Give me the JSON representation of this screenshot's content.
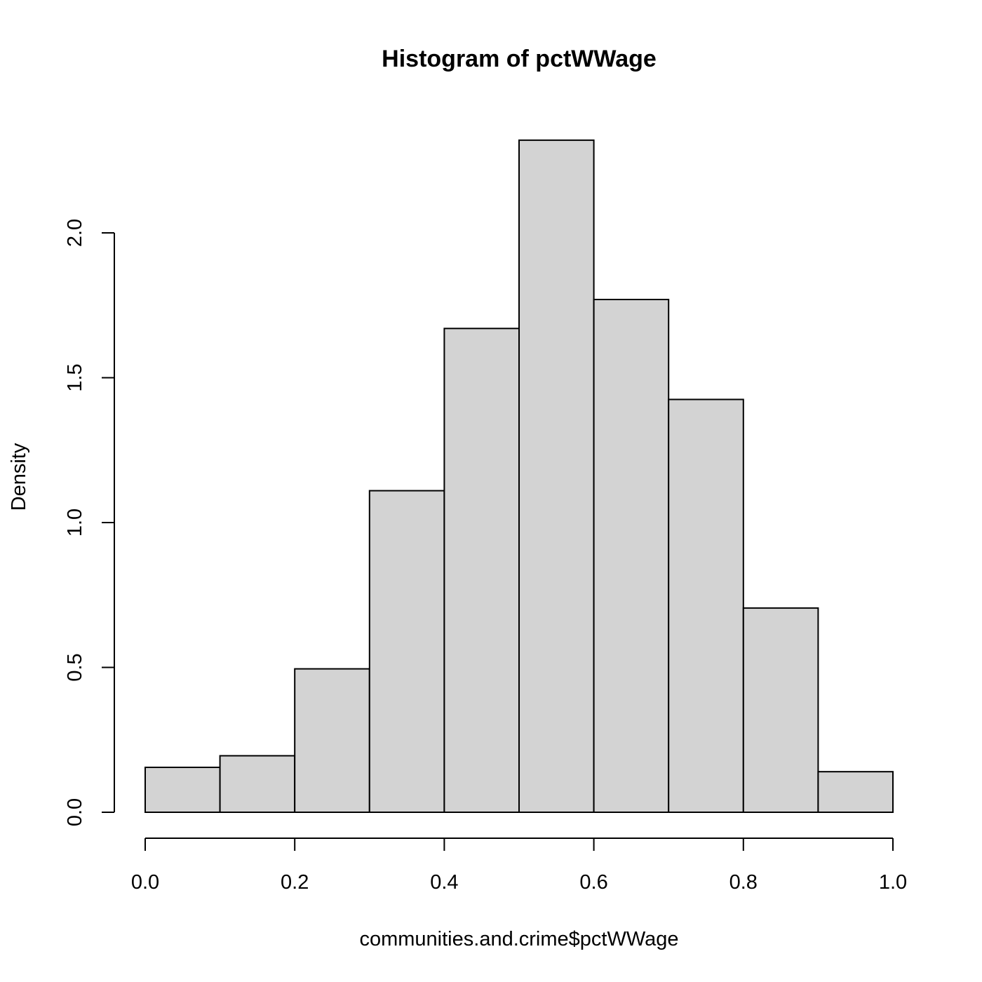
{
  "chart_data": {
    "type": "bar",
    "title": "Histogram of pctWWage",
    "xlabel": "communities.and.crime$pctWWage",
    "ylabel": "Density",
    "bins": [
      {
        "start": 0.0,
        "end": 0.1,
        "density": 0.155
      },
      {
        "start": 0.1,
        "end": 0.2,
        "density": 0.195
      },
      {
        "start": 0.2,
        "end": 0.3,
        "density": 0.495
      },
      {
        "start": 0.3,
        "end": 0.4,
        "density": 1.11
      },
      {
        "start": 0.4,
        "end": 0.5,
        "density": 1.67
      },
      {
        "start": 0.5,
        "end": 0.6,
        "density": 2.32
      },
      {
        "start": 0.6,
        "end": 0.7,
        "density": 1.77
      },
      {
        "start": 0.7,
        "end": 0.8,
        "density": 1.425
      },
      {
        "start": 0.8,
        "end": 0.9,
        "density": 0.705
      },
      {
        "start": 0.9,
        "end": 1.0,
        "density": 0.14
      }
    ],
    "xlim": [
      0.0,
      1.0
    ],
    "ylim": [
      0.0,
      2.0
    ],
    "x_ticks": [
      {
        "value": 0.0,
        "label": "0.0"
      },
      {
        "value": 0.2,
        "label": "0.2"
      },
      {
        "value": 0.4,
        "label": "0.4"
      },
      {
        "value": 0.6,
        "label": "0.6"
      },
      {
        "value": 0.8,
        "label": "0.8"
      },
      {
        "value": 1.0,
        "label": "1.0"
      }
    ],
    "y_ticks": [
      {
        "value": 0.0,
        "label": "0.0"
      },
      {
        "value": 0.5,
        "label": "0.5"
      },
      {
        "value": 1.0,
        "label": "1.0"
      },
      {
        "value": 1.5,
        "label": "1.5"
      },
      {
        "value": 2.0,
        "label": "2.0"
      }
    ],
    "grid": false,
    "legend": "none",
    "colors": {
      "bar_fill": "#d3d3d3",
      "bar_stroke": "#000000"
    }
  }
}
